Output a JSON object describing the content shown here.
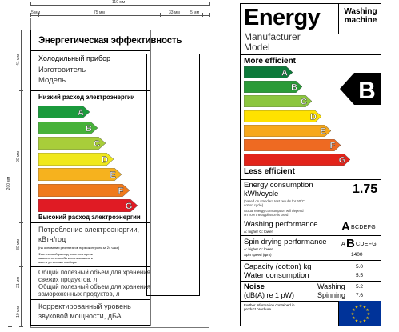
{
  "ru_label": {
    "dimensions": {
      "total_width": "110 мм",
      "left_margin": "5 мм",
      "main_width": "75 мм",
      "right_width": "33 мм",
      "right_margin": "5 мм",
      "total_height": "200 мм",
      "h_top": "41 мм",
      "h_arrows": "90 мм",
      "h_consumption": "30 мм",
      "h_volume": "21 мм",
      "h_noise": "10 мм"
    },
    "title": "Энергетическая эффективность",
    "appliance": "Холодильный прибор",
    "manufacturer": "Изготовитель",
    "model": "Модель",
    "low_consumption": "Низкий расход электроэнергии",
    "high_consumption": "Высокий расход электроэнергии",
    "classes": [
      "A",
      "B",
      "C",
      "D",
      "E",
      "F",
      "G"
    ],
    "class_colors": [
      "#1a9a3c",
      "#47b23a",
      "#a8cd3a",
      "#f0e81c",
      "#f6b21e",
      "#ef7a1d",
      "#e01b24"
    ],
    "consumption_title": "Потребление электроэнергии,",
    "consumption_unit": "кВтч/год",
    "consumption_note1": "(на основании результатов нормоконтроля за 24 часа)",
    "consumption_note2": "Фактический расход электроэнергии",
    "consumption_note3": "зависит от способа использования и",
    "consumption_note4": "места установки прибора.",
    "volume1": "Общий полезный объем для хранения",
    "volume2": "свежих продуктов, л",
    "volume3": "Общий полезный объем для хранения",
    "volume4": "замороженных продуктов, л",
    "noise1": "Корректированный уровень",
    "noise2": "звуковой мощности, дБА"
  },
  "en_label": {
    "title": "Energy",
    "type_line1": "Washing",
    "type_line2": "machine",
    "manufacturer": "Manufacturer",
    "model": "Model",
    "more_efficient": "More efficient",
    "less_efficient": "Less efficient",
    "classes": [
      "A",
      "B",
      "C",
      "D",
      "E",
      "F",
      "G"
    ],
    "class_colors": [
      "#0c7a3a",
      "#2b9b38",
      "#8cc63f",
      "#ffe200",
      "#f7a81c",
      "#ee6a22",
      "#e2231a"
    ],
    "rating": "B",
    "consumption_label1": "Energy consumption",
    "consumption_label2": "kWh/cycle",
    "consumption_note1": "(based on standard test results for 60°C",
    "consumption_note2": "cotton cycle)",
    "consumption_note3": "Actual energy consumption will depend",
    "consumption_note4": "on how the appliance is used",
    "consumption_value": "1.75",
    "washing_perf": "Washing performance",
    "washing_scale": "A: higher  G: lower",
    "washing_big": "A",
    "washing_rest": "BCDEFG",
    "spin_perf": "Spin drying performance",
    "spin_scale": "A: higher  G: lower",
    "spin_speed_label": "Spin speed (rpm)",
    "spin_first": "A",
    "spin_big": "B",
    "spin_rest": "CDEFG",
    "spin_speed": "1400",
    "capacity": "Capacity (cotton) kg",
    "capacity_value": "5.0",
    "water": "Water consumption",
    "water_value": "5.5",
    "noise": "Noise",
    "noise_unit": "(dB(A) re 1 pW)",
    "noise_washing": "Washing",
    "noise_spinning": "Spinning",
    "noise_washing_value": "5.2",
    "noise_spinning_value": "7.6",
    "further_info1": "Further information contained in",
    "further_info2": "product brochure"
  }
}
